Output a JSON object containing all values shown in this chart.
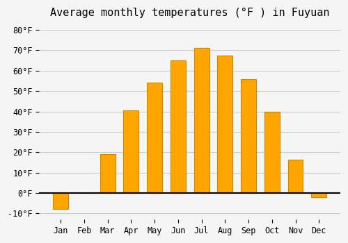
{
  "months": [
    "Jan",
    "Feb",
    "Mar",
    "Apr",
    "May",
    "Jun",
    "Jul",
    "Aug",
    "Sep",
    "Oct",
    "Nov",
    "Dec"
  ],
  "values": [
    -8.0,
    0.0,
    19.0,
    40.5,
    54.0,
    65.0,
    71.0,
    67.5,
    56.0,
    40.0,
    16.5,
    -2.0
  ],
  "bar_color": "#FFA500",
  "bar_edge_color": "#CC8800",
  "background_color": "#f5f5f5",
  "grid_color": "#cccccc",
  "title": "Average monthly temperatures (°F ) in Fuyuan",
  "ylabel": "",
  "xlabel": "",
  "ylim": [
    -13,
    83
  ],
  "yticks": [
    -10,
    0,
    10,
    20,
    30,
    40,
    50,
    60,
    70,
    80
  ],
  "ytick_labels": [
    "-10°F",
    "0°F",
    "10°F",
    "20°F",
    "30°F",
    "40°F",
    "50°F",
    "60°F",
    "70°F",
    "80°F"
  ],
  "title_fontsize": 11,
  "tick_fontsize": 8.5,
  "zero_line_color": "#000000",
  "bar_width": 0.65
}
